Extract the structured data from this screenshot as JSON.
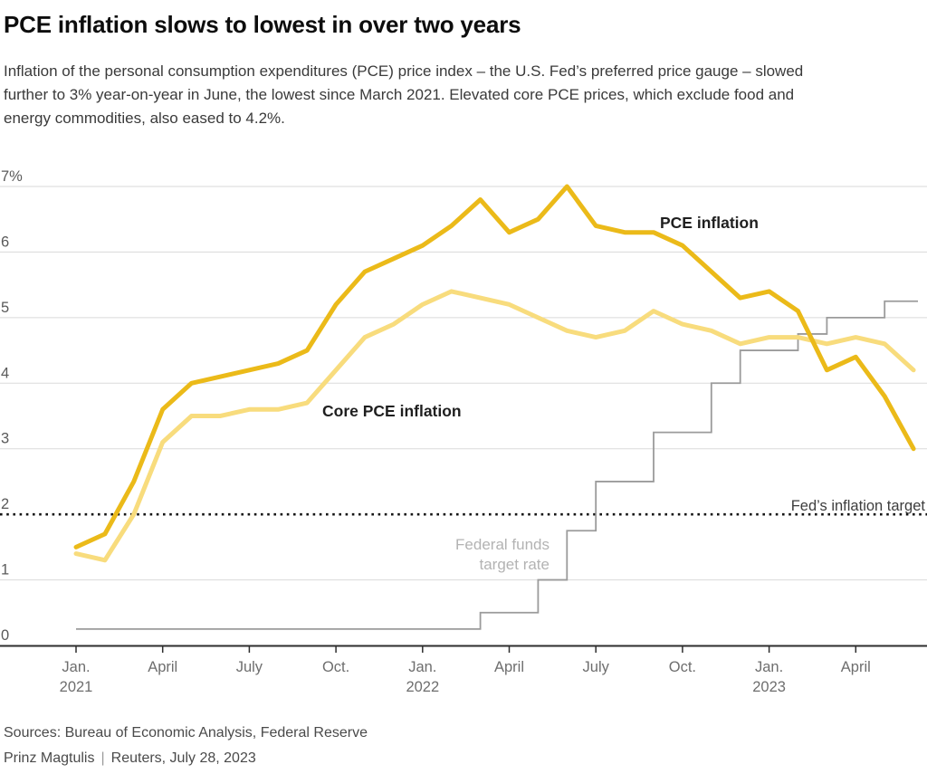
{
  "header": {
    "title": "PCE inflation slows to lowest in over two years",
    "subtitle": "Inflation of the personal consumption expenditures (PCE) price index – the U.S. Fed’s preferred price gauge – slowed further to 3% year-on-year in June, the lowest since March 2021. Elevated core PCE prices, which exclude food and energy commodities, also eased to 4.2%."
  },
  "chart_data": {
    "type": "line",
    "title": "PCE inflation slows to lowest in over two years",
    "x_unit": "month",
    "x_start": "2021-01",
    "x_end": "2023-06",
    "ylabel": "percent",
    "ylim": [
      0,
      7
    ],
    "grid": "horizontal",
    "legend_position": "inline-annotations",
    "y_gridline_values": [
      7,
      6,
      5,
      4,
      3,
      1
    ],
    "y_ticks": [
      {
        "label": "7%",
        "value": 7
      },
      {
        "label": "6",
        "value": 6
      },
      {
        "label": "5",
        "value": 5
      },
      {
        "label": "4",
        "value": 4
      },
      {
        "label": "3",
        "value": 3
      },
      {
        "label": "2",
        "value": 2
      },
      {
        "label": "1",
        "value": 1
      },
      {
        "label": "0",
        "value": 0
      }
    ],
    "x_ticks": [
      {
        "month_index": 0,
        "line1": "Jan.",
        "line2": "2021"
      },
      {
        "month_index": 3,
        "line1": "April"
      },
      {
        "month_index": 6,
        "line1": "July"
      },
      {
        "month_index": 9,
        "line1": "Oct."
      },
      {
        "month_index": 12,
        "line1": "Jan.",
        "line2": "2022"
      },
      {
        "month_index": 15,
        "line1": "April"
      },
      {
        "month_index": 18,
        "line1": "July"
      },
      {
        "month_index": 21,
        "line1": "Oct."
      },
      {
        "month_index": 24,
        "line1": "Jan.",
        "line2": "2023"
      },
      {
        "month_index": 27,
        "line1": "April"
      }
    ],
    "series": [
      {
        "name": "PCE inflation",
        "style": "line",
        "color": "#EBBA19",
        "values": [
          1.5,
          1.7,
          2.5,
          3.6,
          4.0,
          4.1,
          4.2,
          4.3,
          4.5,
          5.2,
          5.7,
          5.9,
          6.1,
          6.4,
          6.8,
          6.3,
          6.5,
          7.0,
          6.4,
          6.3,
          6.3,
          6.1,
          5.7,
          5.3,
          5.4,
          5.1,
          4.2,
          4.4,
          3.8,
          3.0
        ]
      },
      {
        "name": "Core PCE inflation",
        "style": "line",
        "color": "#F8DC7D",
        "values": [
          1.4,
          1.3,
          2.0,
          3.1,
          3.5,
          3.5,
          3.6,
          3.6,
          3.7,
          4.2,
          4.7,
          4.9,
          5.2,
          5.4,
          5.3,
          5.2,
          5.0,
          4.8,
          4.7,
          4.8,
          5.1,
          4.9,
          4.8,
          4.6,
          4.7,
          4.7,
          4.6,
          4.7,
          4.6,
          4.2
        ]
      },
      {
        "name": "Federal funds target rate",
        "style": "step",
        "color": "#9B9B9B",
        "values": [
          0.25,
          0.25,
          0.25,
          0.25,
          0.25,
          0.25,
          0.25,
          0.25,
          0.25,
          0.25,
          0.25,
          0.25,
          0.25,
          0.25,
          0.5,
          0.5,
          1.0,
          1.75,
          2.5,
          2.5,
          3.25,
          3.25,
          4.0,
          4.5,
          4.5,
          4.75,
          5.0,
          5.0,
          5.25,
          5.25
        ]
      }
    ],
    "reference_line": {
      "label": "Fed’s inflation target",
      "value": 2,
      "color": "#141414",
      "style": "dotted"
    }
  },
  "annotations": {
    "pce_label": "PCE inflation",
    "core_label": "Core PCE inflation",
    "ffr_line1": "Federal funds",
    "ffr_line2": "target rate",
    "target_label": "Fed’s inflation target"
  },
  "footer": {
    "sources": "Sources: Bureau of Economic Analysis, Federal Reserve",
    "byline_author": "Prinz Magtulis",
    "byline_separator": "|",
    "byline_source": "Reuters, July 28, 2023"
  }
}
